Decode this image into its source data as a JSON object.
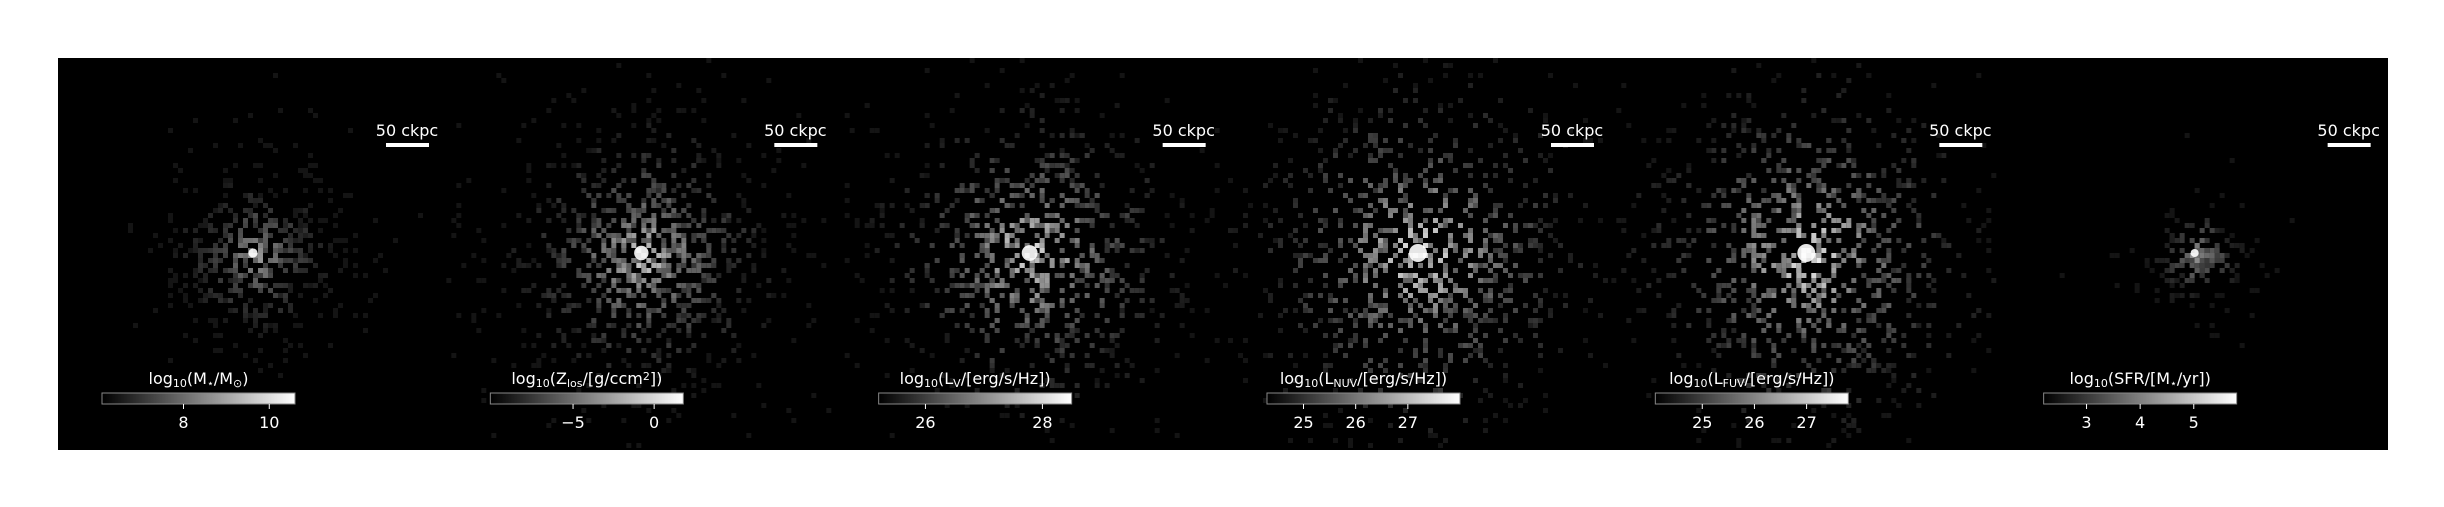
{
  "panels": [
    {
      "scalebar": "50 ckpc",
      "colorbar": {
        "label": [
          {
            "text": "log"
          },
          {
            "text": "10",
            "sub": true
          },
          {
            "text": "(M"
          },
          {
            "text": "⋆",
            "sub": true
          },
          {
            "text": "/M"
          },
          {
            "text": "⊙",
            "sub": true
          },
          {
            "text": ")"
          }
        ],
        "lim": [
          6.1,
          10.6
        ],
        "ticks": [
          8,
          10
        ]
      }
    },
    {
      "scalebar": "50 ckpc",
      "colorbar": {
        "label": [
          {
            "text": "log"
          },
          {
            "text": "10",
            "sub": true
          },
          {
            "text": "(Z"
          },
          {
            "text": "los",
            "sub": true
          },
          {
            "text": "/[g/ccm"
          },
          {
            "text": "2",
            "sup": true
          },
          {
            "text": "])"
          }
        ],
        "lim": [
          -10.1,
          1.8
        ],
        "ticks": [
          {
            "value": -5,
            "label": "−5"
          },
          0
        ]
      }
    },
    {
      "scalebar": "50 ckpc",
      "colorbar": {
        "label": [
          {
            "text": "log"
          },
          {
            "text": "10",
            "sub": true
          },
          {
            "text": "(L"
          },
          {
            "text": "V",
            "sub": true
          },
          {
            "text": "/[erg/s/Hz])"
          }
        ],
        "lim": [
          25.2,
          28.5
        ],
        "ticks": [
          26,
          28
        ]
      }
    },
    {
      "scalebar": "50 ckpc",
      "colorbar": {
        "label": [
          {
            "text": "log"
          },
          {
            "text": "10",
            "sub": true
          },
          {
            "text": "(L"
          },
          {
            "text": "NUV",
            "sub": true
          },
          {
            "text": "/[erg/s/Hz])"
          }
        ],
        "lim": [
          24.3,
          28
        ],
        "ticks": [
          25,
          26,
          27
        ]
      }
    },
    {
      "scalebar": "50 ckpc",
      "colorbar": {
        "label": [
          {
            "text": "log"
          },
          {
            "text": "10",
            "sub": true
          },
          {
            "text": "(L"
          },
          {
            "text": "FUV",
            "sub": true
          },
          {
            "text": "/[erg/s/Hz])"
          }
        ],
        "lim": [
          24.1,
          27.8
        ],
        "ticks": [
          25,
          26,
          27
        ]
      }
    },
    {
      "scalebar": "50 ckpc",
      "colorbar": {
        "label": [
          {
            "text": "log"
          },
          {
            "text": "10",
            "sub": true
          },
          {
            "text": "(SFR/[M"
          },
          {
            "text": "⋆",
            "sub": true
          },
          {
            "text": "/yr])"
          }
        ],
        "lim": [
          2.2,
          5.8
        ],
        "ticks": [
          3,
          4,
          5
        ]
      }
    }
  ]
}
